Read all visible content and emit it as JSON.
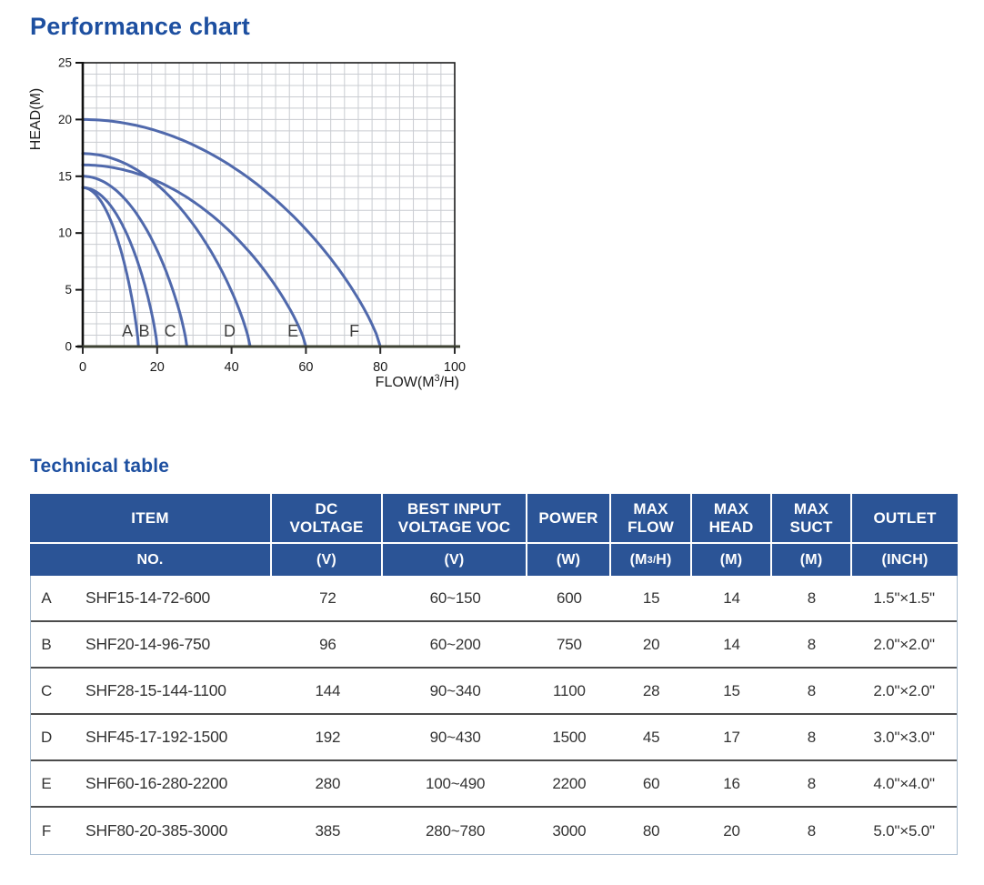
{
  "performance": {
    "title": "Performance chart",
    "title_color": "#1d4fa0",
    "chart_data": {
      "type": "line",
      "xlabel_pre": "FLOW(M",
      "xlabel_sup": "3",
      "xlabel_post": "/H)",
      "ylabel": "HEAD(M)",
      "xlim": [
        0,
        100
      ],
      "ylim": [
        0,
        25
      ],
      "x_ticks": [
        0,
        20,
        40,
        60,
        80,
        100
      ],
      "y_ticks": [
        0,
        5,
        10,
        15,
        20,
        25
      ],
      "grid": true,
      "grid_color": "#c9ccd1",
      "curve_color": "#5069ac",
      "axis_color": "#111111",
      "baseline_color": "#3e4233",
      "series": [
        {
          "name": "A",
          "head_at_zero_flow": 14,
          "max_flow": 15,
          "label_x": 12
        },
        {
          "name": "B",
          "head_at_zero_flow": 14,
          "max_flow": 20,
          "label_x": 16.5
        },
        {
          "name": "C",
          "head_at_zero_flow": 15,
          "max_flow": 28,
          "label_x": 23.5
        },
        {
          "name": "D",
          "head_at_zero_flow": 17,
          "max_flow": 45,
          "label_x": 39.5
        },
        {
          "name": "E",
          "head_at_zero_flow": 16,
          "max_flow": 60,
          "label_x": 56.5
        },
        {
          "name": "F",
          "head_at_zero_flow": 20,
          "max_flow": 80,
          "label_x": 73
        }
      ]
    }
  },
  "technical": {
    "title": "Technical table",
    "header_bg": "#2b5496",
    "columns": [
      {
        "label": "ITEM",
        "unit": "NO."
      },
      {
        "label": "DC\nVOLTAGE",
        "unit": "(V)"
      },
      {
        "label": "BEST INPUT\nVOLTAGE VOC",
        "unit": "(V)"
      },
      {
        "label": "POWER",
        "unit": "(W)"
      },
      {
        "label": "MAX\nFLOW",
        "unit_pre": "(M",
        "unit_sup": "3/",
        "unit_post": "H)"
      },
      {
        "label": "MAX\nHEAD",
        "unit": "(M)"
      },
      {
        "label": "MAX\nSUCT",
        "unit": "(M)"
      },
      {
        "label": "OUTLET",
        "unit": "(INCH)"
      }
    ],
    "rows": [
      {
        "no": "A",
        "item": "SHF15-14-72-600",
        "dc_voltage": "72",
        "best_input": "60~150",
        "power": "600",
        "max_flow": "15",
        "max_head": "14",
        "max_suct": "8",
        "outlet": "1.5\"×1.5\""
      },
      {
        "no": "B",
        "item": "SHF20-14-96-750",
        "dc_voltage": "96",
        "best_input": "60~200",
        "power": "750",
        "max_flow": "20",
        "max_head": "14",
        "max_suct": "8",
        "outlet": "2.0\"×2.0\""
      },
      {
        "no": "C",
        "item": "SHF28-15-144-1100",
        "dc_voltage": "144",
        "best_input": "90~340",
        "power": "1100",
        "max_flow": "28",
        "max_head": "15",
        "max_suct": "8",
        "outlet": "2.0\"×2.0\""
      },
      {
        "no": "D",
        "item": "SHF45-17-192-1500",
        "dc_voltage": "192",
        "best_input": "90~430",
        "power": "1500",
        "max_flow": "45",
        "max_head": "17",
        "max_suct": "8",
        "outlet": "3.0\"×3.0\""
      },
      {
        "no": "E",
        "item": "SHF60-16-280-2200",
        "dc_voltage": "280",
        "best_input": "100~490",
        "power": "2200",
        "max_flow": "60",
        "max_head": "16",
        "max_suct": "8",
        "outlet": "4.0\"×4.0\""
      },
      {
        "no": "F",
        "item": "SHF80-20-385-3000",
        "dc_voltage": "385",
        "best_input": "280~780",
        "power": "3000",
        "max_flow": "80",
        "max_head": "20",
        "max_suct": "8",
        "outlet": "5.0\"×5.0\""
      }
    ]
  }
}
